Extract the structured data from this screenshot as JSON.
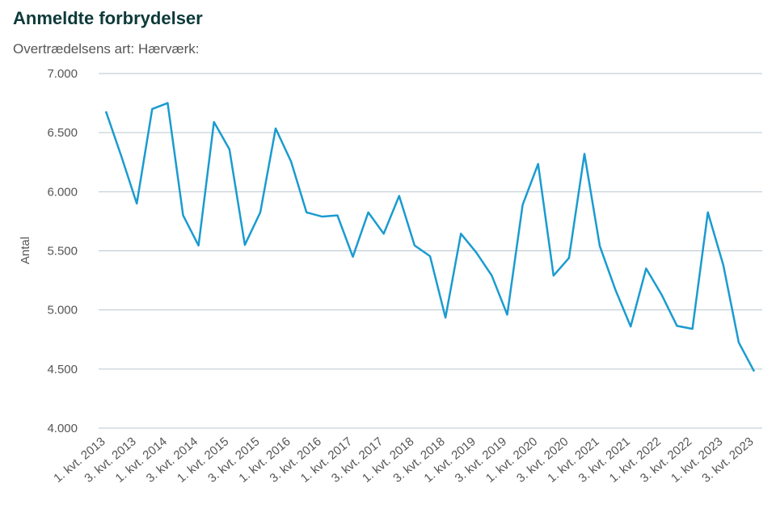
{
  "chart_data": {
    "type": "line",
    "title": "Anmeldte forbrydelser",
    "subtitle": "Overtrædelsens art: Hærværk:",
    "ylabel": "Antal",
    "categories": [
      "1. kvt. 2013",
      null,
      "3. kvt. 2013",
      null,
      "1. kvt. 2014",
      null,
      "3. kvt. 2014",
      null,
      "1. kvt. 2015",
      null,
      "3. kvt. 2015",
      null,
      "1. kvt. 2016",
      null,
      "3. kvt. 2016",
      null,
      "1. kvt. 2017",
      null,
      "3. kvt. 2017",
      null,
      "1. kvt. 2018",
      null,
      "3. kvt. 2018",
      null,
      "1. kvt. 2019",
      null,
      "3. kvt. 2019",
      null,
      "1. kvt. 2020",
      null,
      "3. kvt. 2020",
      null,
      "1. kvt. 2021",
      null,
      "3. kvt. 2021",
      null,
      "1. kvt. 2022",
      null,
      "3. kvt. 2022",
      null,
      "1. kvt. 2023",
      null,
      "3. kvt. 2023"
    ],
    "series": [
      {
        "name": "Hærværk",
        "color": "#1a9bd0",
        "values": [
          6680,
          6300,
          5900,
          6700,
          6750,
          5800,
          5545,
          6590,
          6360,
          5550,
          5825,
          6535,
          6255,
          5825,
          5790,
          5800,
          5450,
          5825,
          5645,
          5965,
          5545,
          5455,
          4935,
          5645,
          5485,
          5290,
          4960,
          5890,
          6235,
          5290,
          5440,
          6320,
          5540,
          5175,
          4860,
          5350,
          5130,
          4865,
          4840,
          5825,
          5380,
          4725,
          4480
        ]
      }
    ],
    "ylim": [
      4000,
      7000
    ],
    "yticks": [
      {
        "value": 4000,
        "label": "4.000"
      },
      {
        "value": 4500,
        "label": "4.500"
      },
      {
        "value": 5000,
        "label": "5.000"
      },
      {
        "value": 5500,
        "label": "5.500"
      },
      {
        "value": 6000,
        "label": "6.000"
      },
      {
        "value": 6500,
        "label": "6.500"
      },
      {
        "value": 7000,
        "label": "7.000"
      }
    ],
    "grid": true
  }
}
